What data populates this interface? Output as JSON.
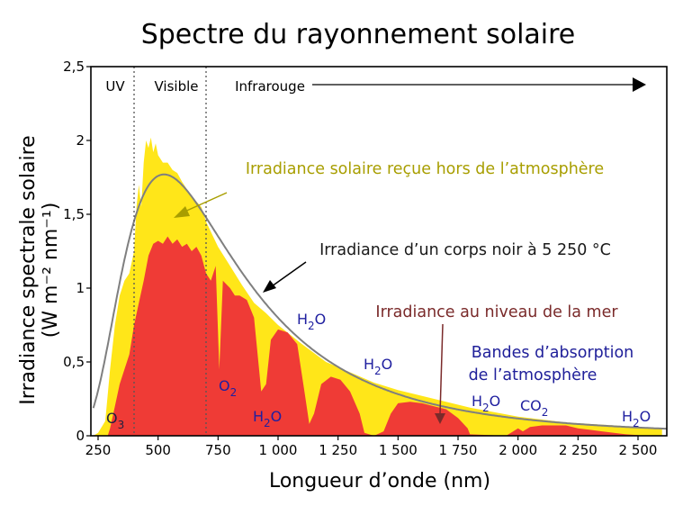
{
  "chart_data": {
    "type": "area",
    "title": "Spectre du rayonnement solaire",
    "xlabel": "Longueur d’onde (nm)",
    "ylabel_line1": "Irradiance spectrale solaire",
    "ylabel_line2": "(W m⁻² nm⁻¹)",
    "xlim": [
      220,
      2620
    ],
    "ylim": [
      0,
      2.5
    ],
    "x_ticks": [
      250,
      500,
      750,
      1000,
      1250,
      1500,
      1750,
      2000,
      2250,
      2500
    ],
    "x_tick_labels": [
      "250",
      "500",
      "750",
      "1 000",
      "1 250",
      "1 500",
      "1 750",
      "2 000",
      "2 250",
      "2 500"
    ],
    "y_ticks": [
      0,
      0.5,
      1,
      1.5,
      2,
      2.5
    ],
    "y_tick_labels": [
      "0",
      "0,5",
      "1",
      "1,5",
      "2",
      "2,5"
    ],
    "regions": {
      "uv": "UV",
      "visible": "Visible",
      "infrared": "Infrarouge",
      "boundaries": [
        400,
        700
      ]
    },
    "series": [
      {
        "name": "Irradiance solaire reçue hors de l’atmosphère",
        "color": "#ffe619",
        "points": [
          [
            230,
            0.0
          ],
          [
            250,
            0.02
          ],
          [
            280,
            0.1
          ],
          [
            300,
            0.45
          ],
          [
            320,
            0.75
          ],
          [
            340,
            0.95
          ],
          [
            360,
            1.05
          ],
          [
            380,
            1.1
          ],
          [
            400,
            1.25
          ],
          [
            410,
            1.55
          ],
          [
            420,
            1.7
          ],
          [
            430,
            1.55
          ],
          [
            440,
            1.85
          ],
          [
            450,
            2.0
          ],
          [
            460,
            1.95
          ],
          [
            470,
            2.02
          ],
          [
            480,
            1.92
          ],
          [
            490,
            1.98
          ],
          [
            500,
            1.9
          ],
          [
            520,
            1.85
          ],
          [
            540,
            1.85
          ],
          [
            560,
            1.8
          ],
          [
            580,
            1.78
          ],
          [
            600,
            1.72
          ],
          [
            640,
            1.62
          ],
          [
            680,
            1.55
          ],
          [
            700,
            1.45
          ],
          [
            750,
            1.28
          ],
          [
            800,
            1.15
          ],
          [
            850,
            1.02
          ],
          [
            900,
            0.9
          ],
          [
            950,
            0.83
          ],
          [
            1000,
            0.75
          ],
          [
            1100,
            0.62
          ],
          [
            1200,
            0.5
          ],
          [
            1300,
            0.43
          ],
          [
            1400,
            0.36
          ],
          [
            1500,
            0.31
          ],
          [
            1600,
            0.27
          ],
          [
            1700,
            0.23
          ],
          [
            1800,
            0.19
          ],
          [
            1900,
            0.16
          ],
          [
            2000,
            0.13
          ],
          [
            2100,
            0.11
          ],
          [
            2200,
            0.09
          ],
          [
            2300,
            0.08
          ],
          [
            2400,
            0.07
          ],
          [
            2500,
            0.06
          ],
          [
            2600,
            0.05
          ]
        ]
      },
      {
        "name": "Irradiance au niveau de la mer",
        "color": "#ef3b36",
        "points": [
          [
            290,
            0.0
          ],
          [
            300,
            0.05
          ],
          [
            320,
            0.2
          ],
          [
            340,
            0.35
          ],
          [
            360,
            0.45
          ],
          [
            380,
            0.55
          ],
          [
            400,
            0.75
          ],
          [
            420,
            0.9
          ],
          [
            440,
            1.05
          ],
          [
            460,
            1.22
          ],
          [
            480,
            1.3
          ],
          [
            500,
            1.32
          ],
          [
            520,
            1.3
          ],
          [
            540,
            1.35
          ],
          [
            560,
            1.3
          ],
          [
            580,
            1.33
          ],
          [
            600,
            1.28
          ],
          [
            620,
            1.3
          ],
          [
            640,
            1.25
          ],
          [
            660,
            1.28
          ],
          [
            680,
            1.22
          ],
          [
            700,
            1.1
          ],
          [
            720,
            1.05
          ],
          [
            740,
            1.15
          ],
          [
            755,
            0.45
          ],
          [
            770,
            1.05
          ],
          [
            800,
            1.0
          ],
          [
            820,
            0.95
          ],
          [
            840,
            0.95
          ],
          [
            870,
            0.92
          ],
          [
            900,
            0.8
          ],
          [
            930,
            0.3
          ],
          [
            950,
            0.35
          ],
          [
            970,
            0.65
          ],
          [
            1000,
            0.72
          ],
          [
            1040,
            0.7
          ],
          [
            1080,
            0.62
          ],
          [
            1110,
            0.3
          ],
          [
            1130,
            0.08
          ],
          [
            1150,
            0.15
          ],
          [
            1180,
            0.35
          ],
          [
            1220,
            0.4
          ],
          [
            1260,
            0.38
          ],
          [
            1300,
            0.3
          ],
          [
            1340,
            0.15
          ],
          [
            1360,
            0.02
          ],
          [
            1400,
            0.0
          ],
          [
            1440,
            0.03
          ],
          [
            1470,
            0.15
          ],
          [
            1500,
            0.22
          ],
          [
            1550,
            0.23
          ],
          [
            1600,
            0.22
          ],
          [
            1650,
            0.2
          ],
          [
            1700,
            0.18
          ],
          [
            1750,
            0.12
          ],
          [
            1790,
            0.05
          ],
          [
            1800,
            0.01
          ],
          [
            1950,
            0.0
          ],
          [
            1970,
            0.02
          ],
          [
            2000,
            0.05
          ],
          [
            2020,
            0.03
          ],
          [
            2050,
            0.06
          ],
          [
            2100,
            0.07
          ],
          [
            2150,
            0.07
          ],
          [
            2200,
            0.07
          ],
          [
            2250,
            0.05
          ],
          [
            2300,
            0.04
          ],
          [
            2350,
            0.03
          ],
          [
            2400,
            0.02
          ],
          [
            2450,
            0.01
          ],
          [
            2500,
            0.005
          ]
        ]
      },
      {
        "name": "Irradiance d’un corps noir à 5 250 °C",
        "color": "#7f7f7f",
        "temperature_K": 5523.15,
        "peak": [
          552,
          1.77
        ]
      }
    ],
    "annotations": {
      "sun_label": "Irradiance solaire reçue hors de l’atmosphère",
      "bb_label": "Irradiance d’un corps noir à 5 250 °C",
      "sea_label": "Irradiance au niveau de la mer",
      "abs_label_1": "Bandes d’absorption",
      "abs_label_2": "de l’atmosphère"
    },
    "molecules": [
      {
        "base": "O",
        "sub": "3",
        "x_nm": 260
      },
      {
        "base": "O",
        "sub": "2",
        "x_nm": 760
      },
      {
        "base": "H",
        "sub": "2",
        "tail": "O",
        "x_nm": 940
      },
      {
        "base": "H",
        "sub": "2",
        "tail": "O",
        "x_nm": 1130
      },
      {
        "base": "H",
        "sub": "2",
        "tail": "O",
        "x_nm": 1400
      },
      {
        "base": "H",
        "sub": "2",
        "tail": "O",
        "x_nm": 1850
      },
      {
        "base": "CO",
        "sub": "2",
        "x_nm": 2000
      },
      {
        "base": "H",
        "sub": "2",
        "tail": "O",
        "x_nm": 2500
      }
    ]
  }
}
